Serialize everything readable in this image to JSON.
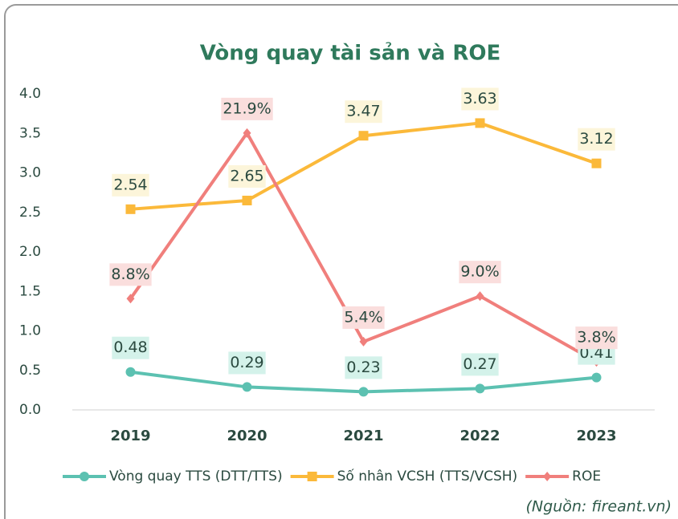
{
  "chart_data": {
    "type": "line",
    "title": "Vòng quay tài sản và ROE",
    "categories": [
      "2019",
      "2020",
      "2021",
      "2022",
      "2023"
    ],
    "series": [
      {
        "name": "Vòng quay TTS (DTT/TTS)",
        "color": "#5cc1b1",
        "marker": "circle",
        "label_bg": "#d4f2ea",
        "values": [
          0.48,
          0.29,
          0.23,
          0.27,
          0.41
        ]
      },
      {
        "name": "Số nhân VCSH (TTS/VCSH)",
        "color": "#fbb93a",
        "marker": "square",
        "label_bg": "#fcf5da",
        "values": [
          2.54,
          2.65,
          3.47,
          3.63,
          3.12
        ]
      },
      {
        "name": "ROE",
        "color": "#f07f7c",
        "marker": "diamond",
        "label_bg": "#fadedd",
        "axis": "y2",
        "values": [
          8.8,
          21.9,
          5.4,
          9.0,
          3.8
        ],
        "value_labels": [
          "8.8%",
          "21.9%",
          "5.4%",
          "9.0%",
          "3.8%"
        ]
      }
    ],
    "ylim": [
      0,
      4
    ],
    "yticks": [
      {
        "value": 0,
        "label": "0.0"
      },
      0.5,
      {
        "value": 1,
        "label": "1.0"
      },
      1.5,
      {
        "value": 2,
        "label": "2.0"
      },
      2.5,
      {
        "value": 3,
        "label": "3.0"
      },
      3.5,
      {
        "value": 4,
        "label": "4.0"
      }
    ],
    "y2lim": [
      0,
      25
    ],
    "grid": false,
    "legend": "bottom",
    "source": "(Nguồn: fireant.vn)"
  }
}
